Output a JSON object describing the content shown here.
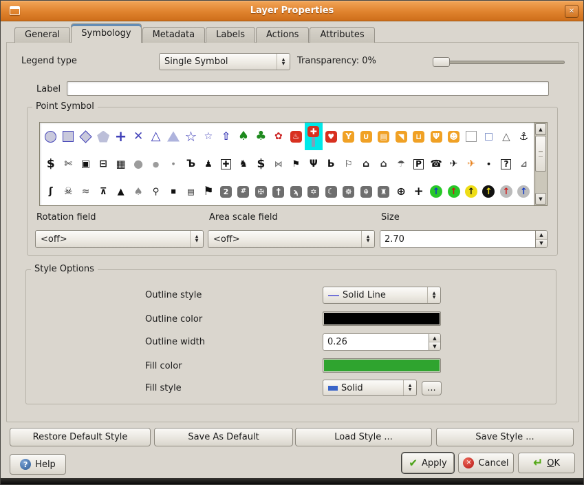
{
  "window": {
    "title": "Layer Properties"
  },
  "icons": {
    "close": "✕",
    "combo_up": "▲",
    "combo_down": "▼",
    "spin_up": "▲",
    "spin_down": "▼",
    "scroll_up": "▲",
    "scroll_down": "▼",
    "help": "?",
    "apply": "✔",
    "cancel": "✕",
    "ok": "↵"
  },
  "tabs": [
    {
      "label": "General",
      "active": false
    },
    {
      "label": "Symbology",
      "active": true
    },
    {
      "label": "Metadata",
      "active": false
    },
    {
      "label": "Labels",
      "active": false
    },
    {
      "label": "Actions",
      "active": false
    },
    {
      "label": "Attributes",
      "active": false
    }
  ],
  "legend_type": {
    "label": "Legend type",
    "value": "Single Symbol"
  },
  "transparency": {
    "label": "Transparency: 0%",
    "percent": 0
  },
  "label_row": {
    "label": "Label",
    "value": ""
  },
  "point_symbol": {
    "title": "Point Symbol",
    "rows": [
      [
        {
          "n": "circle",
          "shape": "circle"
        },
        {
          "n": "square",
          "shape": "sq"
        },
        {
          "n": "diamond",
          "shape": "diamond"
        },
        {
          "n": "pentagon",
          "shape": "pentagon"
        },
        {
          "n": "plus",
          "g": "+",
          "c": "#4040B8",
          "fs": 21
        },
        {
          "n": "cross",
          "g": "✕",
          "c": "#4040B8",
          "fs": 17
        },
        {
          "n": "open-triangle",
          "g": "△",
          "c": "#4040B8",
          "fs": 18
        },
        {
          "n": "filled-triangle",
          "shape": "tri"
        },
        {
          "n": "star-large",
          "g": "☆",
          "c": "#4040B8",
          "fs": 20
        },
        {
          "n": "star-small",
          "g": "☆",
          "c": "#4040B8",
          "fs": 14
        },
        {
          "n": "arrow-up",
          "g": "⇧",
          "c": "#4040B8",
          "fs": 16
        },
        {
          "n": "conifer-tree",
          "g": "♠",
          "c": "#1E8A1E",
          "fs": 18
        },
        {
          "n": "round-tree",
          "g": "♣",
          "c": "#1E8A1E",
          "fs": 18
        },
        {
          "n": "flower",
          "g": "✿",
          "c": "#CC2222",
          "fs": 14
        },
        {
          "n": "fire",
          "g": "♨",
          "c": "#FFFFFF",
          "bg": "#D83020",
          "fs": 12
        },
        {
          "n": "hospital-selected",
          "sel": true
        },
        {
          "n": "red-heart",
          "g": "♥",
          "c": "#FFFFFF",
          "bg": "#D83020",
          "fs": 11
        },
        {
          "n": "bar",
          "g": "Y",
          "c": "#FFFFFF",
          "bg": "#F0A125",
          "fs": 12
        },
        {
          "n": "cafe",
          "g": "∪",
          "c": "#FFFFFF",
          "bg": "#F0A125",
          "fs": 12
        },
        {
          "n": "cinema",
          "g": "▤",
          "c": "#FFFFFF",
          "bg": "#F0A125",
          "fs": 11
        },
        {
          "n": "pizzeria",
          "g": "◥",
          "c": "#FFFFFF",
          "bg": "#F0A125",
          "fs": 11
        },
        {
          "n": "pub",
          "g": "⊔",
          "c": "#FFFFFF",
          "bg": "#F0A125",
          "fs": 11
        },
        {
          "n": "restaurant",
          "g": "Ψ",
          "c": "#FFFFFF",
          "bg": "#F0A125",
          "fs": 12
        },
        {
          "n": "theatre",
          "g": "☻",
          "c": "#FFFFFF",
          "bg": "#F0A125",
          "fs": 12
        },
        {
          "n": "white-square",
          "shape": "sqw"
        },
        {
          "n": "small-square",
          "shape": "sqs"
        },
        {
          "n": "thin-triangle",
          "g": "△",
          "c": "#555555",
          "fs": 15
        },
        {
          "n": "anchor",
          "g": "⚓",
          "c": "#111111",
          "fs": 15
        }
      ],
      [
        {
          "n": "dollar",
          "g": "$",
          "c": "#111111",
          "fs": 17
        },
        {
          "n": "gun",
          "g": "✄",
          "c": "#111111",
          "fs": 14
        },
        {
          "n": "camera",
          "g": "▣",
          "c": "#111111",
          "fs": 14
        },
        {
          "n": "car",
          "g": "⊟",
          "c": "#111111",
          "fs": 14
        },
        {
          "n": "building",
          "g": "▦",
          "c": "#111111",
          "fs": 15
        },
        {
          "n": "gray-circle-large",
          "g": "●",
          "c": "#9C9C9C",
          "fs": 16
        },
        {
          "n": "gray-circle-medium",
          "g": "●",
          "c": "#9C9C9C",
          "fs": 11
        },
        {
          "n": "gray-circle-small",
          "g": "●",
          "c": "#8A8A8A",
          "fs": 5
        },
        {
          "n": "fuel",
          "g": "Ъ",
          "c": "#111111",
          "fs": 14
        },
        {
          "n": "people",
          "g": "♟",
          "c": "#111111",
          "fs": 13
        },
        {
          "n": "first-aid",
          "g": "✚",
          "c": "#111111",
          "fs": 12,
          "box": true
        },
        {
          "n": "deer",
          "g": "♞",
          "c": "#111111",
          "fs": 14
        },
        {
          "n": "bank",
          "g": "$",
          "c": "#111111",
          "fs": 17
        },
        {
          "n": "fish",
          "g": "⋈",
          "c": "#7A7A7A",
          "fs": 12
        },
        {
          "n": "flag",
          "g": "⚑",
          "c": "#111111",
          "fs": 13
        },
        {
          "n": "restaurant-dark",
          "g": "Ψ",
          "c": "#111111",
          "fs": 14
        },
        {
          "n": "fuel-pump",
          "g": "Ь",
          "c": "#111111",
          "fs": 14
        },
        {
          "n": "golf",
          "g": "⚐",
          "c": "#111111",
          "fs": 13
        },
        {
          "n": "house-outline",
          "g": "⌂",
          "c": "#111111",
          "fs": 14
        },
        {
          "n": "house-filled",
          "g": "⌂",
          "c": "#333333",
          "fs": 14
        },
        {
          "n": "balloon",
          "g": "☂",
          "c": "#555555",
          "fs": 13
        },
        {
          "n": "parking",
          "g": "P",
          "c": "#111111",
          "fs": 12,
          "box": true
        },
        {
          "n": "telephone",
          "g": "☎",
          "c": "#111111",
          "fs": 14
        },
        {
          "n": "airport-dark",
          "g": "✈",
          "c": "#111111",
          "fs": 14
        },
        {
          "n": "airport-orange",
          "g": "✈",
          "c": "#E8821E",
          "fs": 14
        },
        {
          "n": "small-dot",
          "g": "•",
          "c": "#111111",
          "fs": 11
        },
        {
          "n": "unknown",
          "g": "?",
          "c": "#111111",
          "fs": 12,
          "box": true
        },
        {
          "n": "satellite-dish",
          "g": "⊿",
          "c": "#555555",
          "fs": 12
        }
      ],
      [
        {
          "n": "skier",
          "g": "ʃ",
          "c": "#111111",
          "fs": 14
        },
        {
          "n": "skull",
          "g": "☠",
          "c": "#111111",
          "fs": 14
        },
        {
          "n": "swimmer",
          "g": "≈",
          "c": "#777777",
          "fs": 14
        },
        {
          "n": "picnic-table",
          "g": "⊼",
          "c": "#111111",
          "fs": 13
        },
        {
          "n": "tepee",
          "g": "▲",
          "c": "#111111",
          "fs": 13
        },
        {
          "n": "gray-tree",
          "g": "♠",
          "c": "#8A8A8A",
          "fs": 15
        },
        {
          "n": "hiker",
          "g": "⚲",
          "c": "#111111",
          "fs": 13
        },
        {
          "n": "black-square",
          "g": "■",
          "c": "#111111",
          "fs": 8
        },
        {
          "n": "tv-camera",
          "g": "▤",
          "c": "#111111",
          "fs": 11
        },
        {
          "n": "big-flag",
          "g": "⚑",
          "c": "#111111",
          "fs": 17
        },
        {
          "n": "prayer",
          "g": "2",
          "c": "#FFFFFF",
          "bg": "#6E6E6E",
          "fs": 11
        },
        {
          "n": "counting",
          "g": "#",
          "c": "#FFFFFF",
          "bg": "#6E6E6E",
          "fs": 10
        },
        {
          "n": "rosette",
          "g": "✠",
          "c": "#FFFFFF",
          "bg": "#6E6E6E",
          "fs": 11
        },
        {
          "n": "christian-cross",
          "g": "†",
          "c": "#FFFFFF",
          "bg": "#6E6E6E",
          "fs": 12
        },
        {
          "n": "om",
          "g": "ϡ",
          "c": "#FFFFFF",
          "bg": "#6E6E6E",
          "fs": 11
        },
        {
          "n": "star-of-david",
          "g": "✡",
          "c": "#FFFFFF",
          "bg": "#6E6E6E",
          "fs": 11
        },
        {
          "n": "crescent",
          "g": "☾",
          "c": "#FFFFFF",
          "bg": "#6E6E6E",
          "fs": 12
        },
        {
          "n": "people-ring",
          "g": "☸",
          "c": "#FFFFFF",
          "bg": "#6E6E6E",
          "fs": 11
        },
        {
          "n": "khanda",
          "g": "☬",
          "c": "#FFFFFF",
          "bg": "#6E6E6E",
          "fs": 11
        },
        {
          "n": "museum",
          "g": "♜",
          "c": "#FFFFFF",
          "bg": "#6E6E6E",
          "fs": 11
        },
        {
          "n": "compass",
          "g": "⊕",
          "c": "#111111",
          "fs": 16
        },
        {
          "n": "north-arrow",
          "g": "+",
          "c": "#111111",
          "fs": 17
        },
        {
          "n": "arrow-blue-green",
          "g": "↑",
          "c": "#1038C8",
          "bg": "#28C828",
          "round": true
        },
        {
          "n": "arrow-red-green",
          "g": "↑",
          "c": "#D01818",
          "bg": "#28C828",
          "round": true
        },
        {
          "n": "arrow-black-yellow",
          "g": "↑",
          "c": "#111111",
          "bg": "#EEDD16",
          "round": true
        },
        {
          "n": "arrow-yellow-black",
          "g": "↑",
          "c": "#EEDD16",
          "bg": "#111111",
          "round": true
        },
        {
          "n": "arrow-red-gray",
          "g": "↑",
          "c": "#D01818",
          "bg": "#BBBBBB",
          "round": true
        },
        {
          "n": "arrow-blue-gray",
          "g": "↑",
          "c": "#1038C8",
          "bg": "#BBBBBB",
          "round": true
        }
      ]
    ]
  },
  "rotation_field": {
    "label": "Rotation field",
    "value": "<off>"
  },
  "area_scale_field": {
    "label": "Area scale field",
    "value": "<off>"
  },
  "size_field": {
    "label": "Size",
    "value": "2.70"
  },
  "style_options": {
    "title": "Style Options",
    "outline_style": {
      "label": "Outline style",
      "value": "Solid Line",
      "line_color": "#7272D8"
    },
    "outline_color": {
      "label": "Outline color",
      "color": "#000000"
    },
    "outline_width": {
      "label": "Outline width",
      "value": "0.26"
    },
    "fill_color": {
      "label": "Fill color",
      "color": "#2FA42F"
    },
    "fill_style": {
      "label": "Fill style",
      "value": "Solid",
      "swatch_color": "#3A64C8"
    },
    "more_label": "..."
  },
  "style_buttons": [
    "Restore Default Style",
    "Save As Default",
    "Load Style ...",
    "Save Style ..."
  ],
  "dialog_buttons": {
    "help": "Help",
    "apply": "Apply",
    "cancel": "Cancel",
    "ok": "OK"
  }
}
